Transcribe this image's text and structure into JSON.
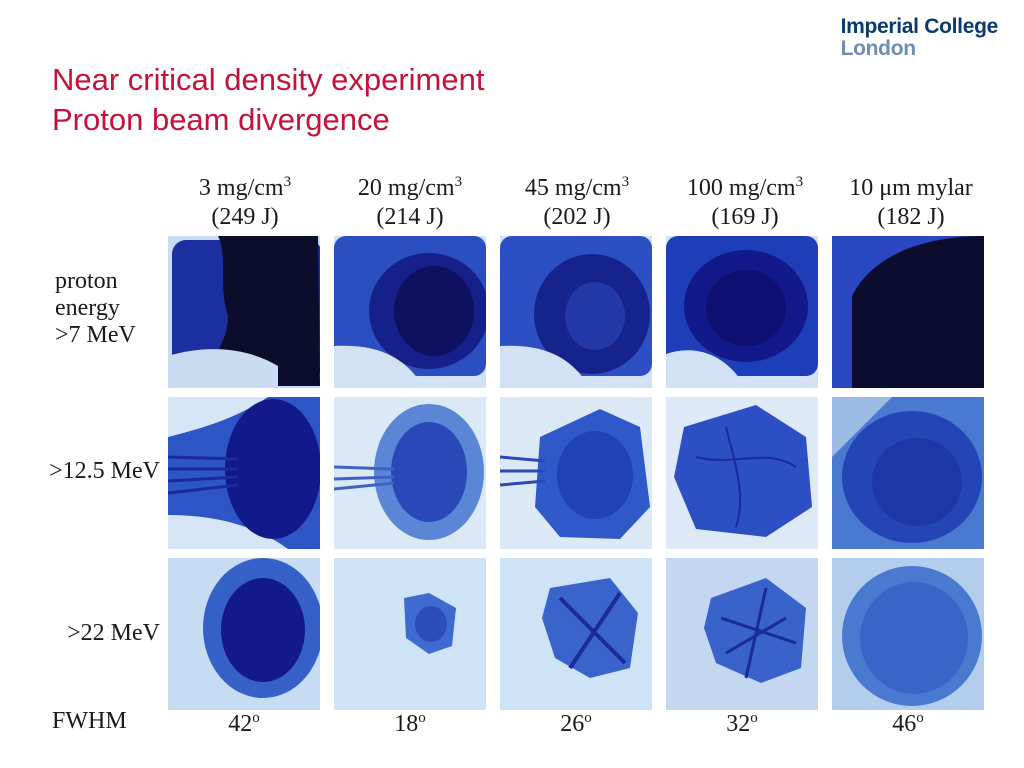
{
  "logo": {
    "line1": "Imperial College",
    "line2": "London"
  },
  "title": {
    "line1": "Near critical density experiment",
    "line2": "Proton beam divergence"
  },
  "columns": [
    {
      "density": "3 mg/cm",
      "exp": "3",
      "energy": "(249 J)"
    },
    {
      "density": "20 mg/cm",
      "exp": "3",
      "energy": "(214 J)"
    },
    {
      "density": "45 mg/cm",
      "exp": "3",
      "energy": "(202 J)"
    },
    {
      "density": "100 mg/cm",
      "exp": "3",
      "energy": "(169 J)"
    },
    {
      "density": "10 μm mylar",
      "exp": "",
      "energy": "(182 J)"
    }
  ],
  "rows": {
    "row1": {
      "line1": "proton",
      "line2": "energy",
      "line3": ">7 MeV"
    },
    "row2": ">12.5 MeV",
    "row3": ">22 MeV"
  },
  "fwhm_label": "FWHM",
  "fwhm_values": [
    {
      "value": "42",
      "unit": "o"
    },
    {
      "value": "18",
      "unit": "o"
    },
    {
      "value": "26",
      "unit": "o"
    },
    {
      "value": "32",
      "unit": "o"
    },
    {
      "value": "46",
      "unit": "o"
    }
  ],
  "colors": {
    "title": "#c4123a",
    "logo_dark": "#0b3a6e",
    "logo_light": "#6e8db5",
    "film_dark": "#0d0f3a",
    "film_blue": "#1c3fb0",
    "film_light": "#dbe9f7"
  }
}
